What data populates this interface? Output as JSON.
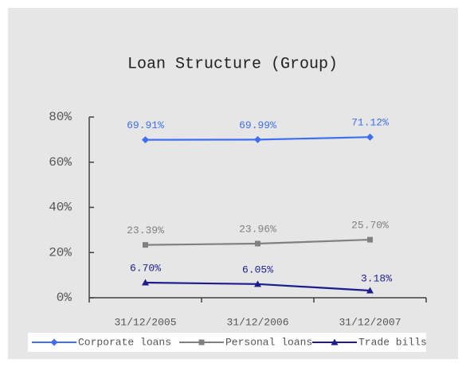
{
  "chart_data": {
    "type": "line",
    "title": "Loan Structure (Group)",
    "categories": [
      "31/12/2005",
      "31/12/2006",
      "31/12/2007"
    ],
    "series": [
      {
        "name": "Corporate loans",
        "color": "#3f6ff0",
        "marker": "diamond",
        "values": [
          69.91,
          69.99,
          71.12
        ],
        "value_labels": [
          "69.91%",
          "69.99%",
          "71.12%"
        ]
      },
      {
        "name": "Personal loans",
        "color": "#808080",
        "marker": "square",
        "values": [
          23.39,
          23.96,
          25.7
        ],
        "value_labels": [
          "23.39%",
          "23.96%",
          "25.70%"
        ]
      },
      {
        "name": "Trade bills",
        "color": "#1c1c8c",
        "marker": "triangle",
        "values": [
          6.7,
          6.05,
          3.18
        ],
        "value_labels": [
          "6.70%",
          "6.05%",
          "3.18%"
        ]
      }
    ],
    "ylim": [
      0,
      80
    ],
    "yticks": [
      {
        "value": 0,
        "label": "0%"
      },
      {
        "value": 20,
        "label": "20%"
      },
      {
        "value": 40,
        "label": "40%"
      },
      {
        "value": 60,
        "label": "60%"
      },
      {
        "value": 80,
        "label": "80%"
      }
    ],
    "grid": false,
    "legend": "bottom"
  }
}
